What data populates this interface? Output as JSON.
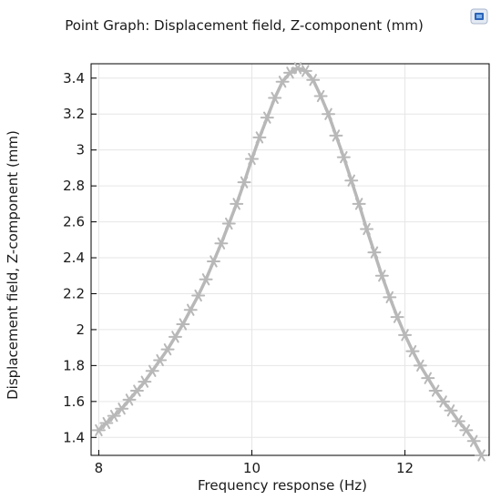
{
  "chart_data": {
    "type": "line",
    "title": "Point Graph: Displacement field, Z-component (mm)",
    "xlabel": "Frequency response (Hz)",
    "ylabel": "Displacement field, Z-component (mm)",
    "xlim": [
      7.9,
      13.1
    ],
    "ylim": [
      1.3,
      3.48
    ],
    "xticks": [
      8,
      10,
      12
    ],
    "yticks": [
      1.4,
      1.6,
      1.8,
      2,
      2.2,
      2.4,
      2.6,
      2.8,
      3,
      3.2,
      3.4
    ],
    "grid": true,
    "marker": "asterisk",
    "line_color": "#b8b8b8",
    "series": [
      {
        "x": [
          8.0,
          8.1,
          8.2,
          8.3,
          8.4,
          8.5,
          8.6,
          8.7,
          8.8,
          8.9,
          9.0,
          9.1,
          9.2,
          9.3,
          9.4,
          9.5,
          9.6,
          9.7,
          9.8,
          9.9,
          10.0,
          10.1,
          10.2,
          10.3,
          10.4,
          10.5,
          10.6,
          10.7,
          10.8,
          10.9,
          11.0,
          11.1,
          11.2,
          11.3,
          11.4,
          11.5,
          11.6,
          11.7,
          11.8,
          11.9,
          12.0,
          12.1,
          12.2,
          12.3,
          12.4,
          12.5,
          12.6,
          12.7,
          12.8,
          12.9,
          13.0
        ],
        "values": [
          1.44,
          1.48,
          1.52,
          1.56,
          1.61,
          1.66,
          1.71,
          1.77,
          1.83,
          1.89,
          1.96,
          2.03,
          2.11,
          2.19,
          2.28,
          2.38,
          2.48,
          2.59,
          2.7,
          2.82,
          2.95,
          3.07,
          3.18,
          3.29,
          3.38,
          3.43,
          3.455,
          3.44,
          3.39,
          3.3,
          3.2,
          3.08,
          2.96,
          2.83,
          2.7,
          2.56,
          2.43,
          2.3,
          2.18,
          2.07,
          1.97,
          1.88,
          1.8,
          1.73,
          1.66,
          1.6,
          1.55,
          1.49,
          1.44,
          1.38,
          1.3
        ]
      }
    ]
  },
  "toolbar": {
    "icon": "comsol-plot-icon",
    "icon_color": "#2b63b8"
  }
}
